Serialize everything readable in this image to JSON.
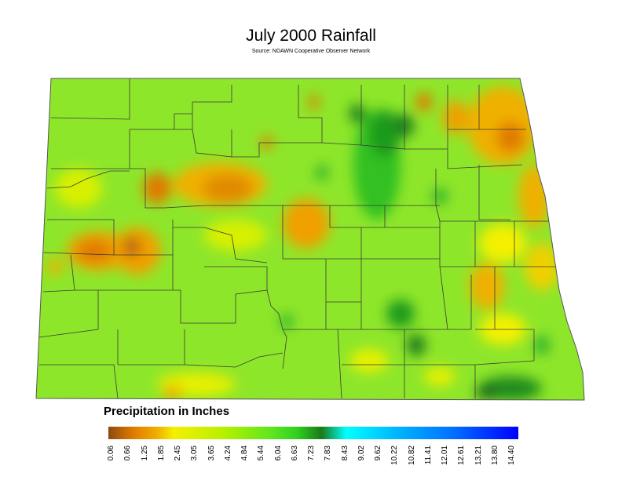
{
  "title": "July 2000 Rainfall",
  "subtitle": "Source: NDAWN Cooperative Observer Network",
  "legend": {
    "title": "Precipitation in Inches",
    "ticks": [
      "0.06",
      "0.66",
      "1.25",
      "1.85",
      "2.45",
      "3.05",
      "3.65",
      "4.24",
      "4.84",
      "5.44",
      "6.04",
      "6.63",
      "7.23",
      "7.83",
      "8.43",
      "9.02",
      "9.62",
      "10.22",
      "10.82",
      "11.41",
      "12.01",
      "12.61",
      "13.21",
      "13.80",
      "14.40"
    ],
    "colors": {
      "dry": "#8b4a10",
      "orange": "#f08a00",
      "yellow": "#f4f000",
      "yellow_green": "#b8f000",
      "green": "#3ce01e",
      "dark_green": "#1a7a1a",
      "cyan": "#00ffff",
      "light_blue": "#00b8ff",
      "blue": "#0070ff",
      "deep_blue": "#0000ff"
    }
  },
  "map": {
    "region": "North Dakota",
    "background_color": "#8ee62a",
    "county_line_color": "#3a3a3a"
  }
}
